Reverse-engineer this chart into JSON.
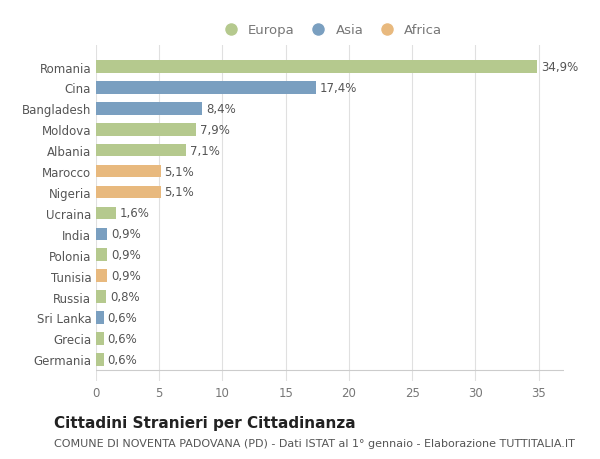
{
  "countries": [
    "Romania",
    "Cina",
    "Bangladesh",
    "Moldova",
    "Albania",
    "Marocco",
    "Nigeria",
    "Ucraina",
    "India",
    "Polonia",
    "Tunisia",
    "Russia",
    "Sri Lanka",
    "Grecia",
    "Germania"
  ],
  "values": [
    34.9,
    17.4,
    8.4,
    7.9,
    7.1,
    5.1,
    5.1,
    1.6,
    0.9,
    0.9,
    0.9,
    0.8,
    0.6,
    0.6,
    0.6
  ],
  "labels": [
    "34,9%",
    "17,4%",
    "8,4%",
    "7,9%",
    "7,1%",
    "5,1%",
    "5,1%",
    "1,6%",
    "0,9%",
    "0,9%",
    "0,9%",
    "0,8%",
    "0,6%",
    "0,6%",
    "0,6%"
  ],
  "continents": [
    "Europa",
    "Asia",
    "Asia",
    "Europa",
    "Europa",
    "Africa",
    "Africa",
    "Europa",
    "Asia",
    "Europa",
    "Africa",
    "Europa",
    "Asia",
    "Europa",
    "Europa"
  ],
  "bar_colors": {
    "Europa": "#b5c98e",
    "Asia": "#7a9fc0",
    "Africa": "#e8b97e"
  },
  "legend_colors": {
    "Europa": "#b5c98e",
    "Asia": "#7a9fc0",
    "Africa": "#e8b97e"
  },
  "title": "Cittadini Stranieri per Cittadinanza",
  "subtitle": "COMUNE DI NOVENTA PADOVANA (PD) - Dati ISTAT al 1° gennaio - Elaborazione TUTTITALIA.IT",
  "xlim": [
    0,
    37
  ],
  "xticks": [
    0,
    5,
    10,
    15,
    20,
    25,
    30,
    35
  ],
  "bg_color": "#ffffff",
  "plot_bg_color": "#ffffff",
  "grid_color": "#e0e0e0",
  "bar_height": 0.6,
  "label_fontsize": 8.5,
  "tick_fontsize": 8.5,
  "title_fontsize": 11,
  "subtitle_fontsize": 8
}
